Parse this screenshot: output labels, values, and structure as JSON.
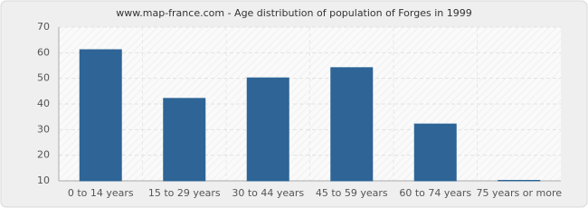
{
  "chart_data": {
    "type": "bar",
    "title": "www.map-france.com - Age distribution of population of Forges in 1999",
    "categories": [
      "0 to 14 years",
      "15 to 29 years",
      "30 to 44 years",
      "45 to 59 years",
      "60 to 74 years",
      "75 years or more"
    ],
    "values": [
      61,
      42,
      50,
      54,
      32,
      10
    ],
    "color": "#2e6496",
    "ylim": [
      10,
      70
    ],
    "yticks": [
      10,
      20,
      30,
      40,
      50,
      60,
      70
    ],
    "grid": true
  }
}
